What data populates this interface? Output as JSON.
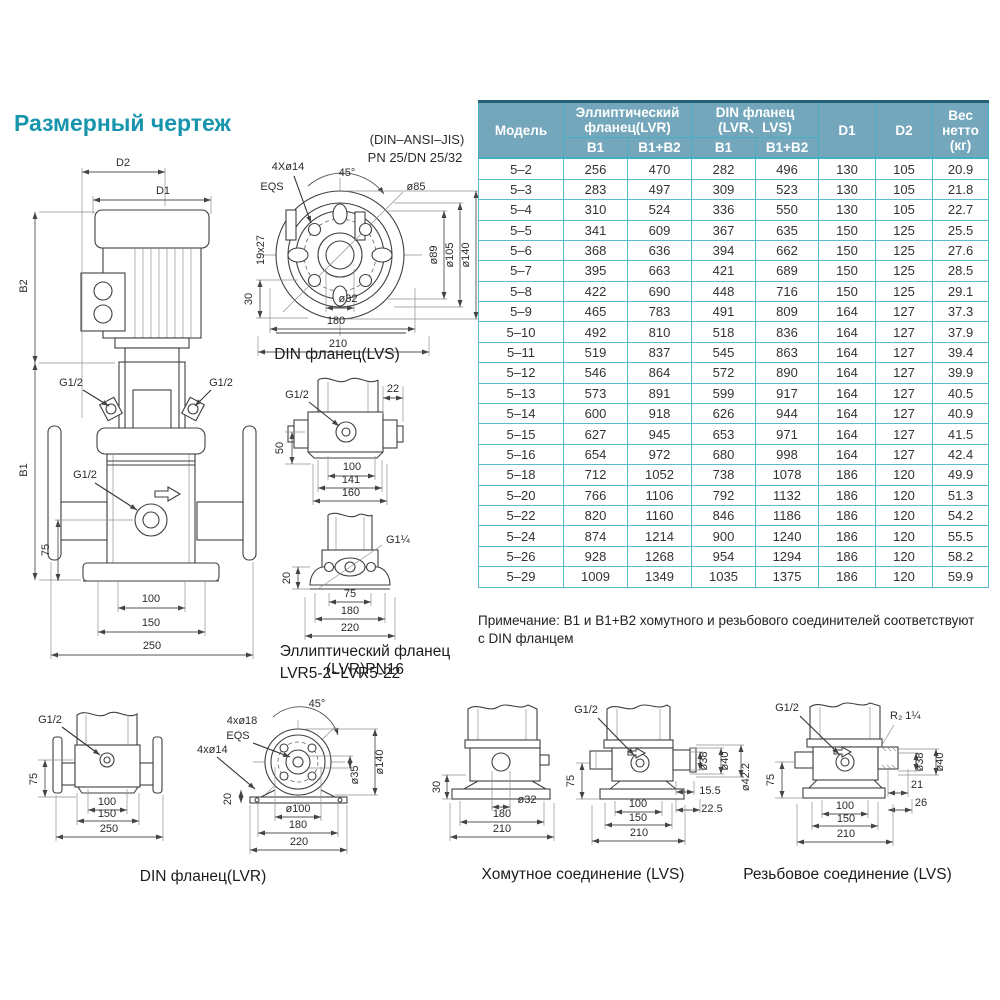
{
  "page": {
    "title": "Размерный чертеж"
  },
  "colors": {
    "accent": "#1795ad",
    "table_header_bg": "#74a7bc",
    "table_grid": "#49b0c2"
  },
  "spec_table": {
    "headers": {
      "model": "Модель",
      "group1": "Эллиптический фланец(LVR)",
      "group2": "DIN фланец (LVR、LVS)",
      "b1a": "B1",
      "b1b2a": "B1+B2",
      "b1b": "B1",
      "b1b2b": "B1+B2",
      "d1": "D1",
      "d2": "D2",
      "weight": "Вес нетто (кг)"
    },
    "rows": [
      [
        "5–2",
        "256",
        "470",
        "282",
        "496",
        "130",
        "105",
        "20.9"
      ],
      [
        "5–3",
        "283",
        "497",
        "309",
        "523",
        "130",
        "105",
        "21.8"
      ],
      [
        "5–4",
        "310",
        "524",
        "336",
        "550",
        "130",
        "105",
        "22.7"
      ],
      [
        "5–5",
        "341",
        "609",
        "367",
        "635",
        "150",
        "125",
        "25.5"
      ],
      [
        "5–6",
        "368",
        "636",
        "394",
        "662",
        "150",
        "125",
        "27.6"
      ],
      [
        "5–7",
        "395",
        "663",
        "421",
        "689",
        "150",
        "125",
        "28.5"
      ],
      [
        "5–8",
        "422",
        "690",
        "448",
        "716",
        "150",
        "125",
        "29.1"
      ],
      [
        "5–9",
        "465",
        "783",
        "491",
        "809",
        "164",
        "127",
        "37.3"
      ],
      [
        "5–10",
        "492",
        "810",
        "518",
        "836",
        "164",
        "127",
        "37.9"
      ],
      [
        "5–11",
        "519",
        "837",
        "545",
        "863",
        "164",
        "127",
        "39.4"
      ],
      [
        "5–12",
        "546",
        "864",
        "572",
        "890",
        "164",
        "127",
        "39.9"
      ],
      [
        "5–13",
        "573",
        "891",
        "599",
        "917",
        "164",
        "127",
        "40.5"
      ],
      [
        "5–14",
        "600",
        "918",
        "626",
        "944",
        "164",
        "127",
        "40.9"
      ],
      [
        "5–15",
        "627",
        "945",
        "653",
        "971",
        "164",
        "127",
        "41.5"
      ],
      [
        "5–16",
        "654",
        "972",
        "680",
        "998",
        "164",
        "127",
        "42.4"
      ],
      [
        "5–18",
        "712",
        "1052",
        "738",
        "1078",
        "186",
        "120",
        "49.9"
      ],
      [
        "5–20",
        "766",
        "1106",
        "792",
        "1132",
        "186",
        "120",
        "51.3"
      ],
      [
        "5–22",
        "820",
        "1160",
        "846",
        "1186",
        "186",
        "120",
        "54.2"
      ],
      [
        "5–24",
        "874",
        "1214",
        "900",
        "1240",
        "186",
        "120",
        "55.5"
      ],
      [
        "5–26",
        "928",
        "1268",
        "954",
        "1294",
        "186",
        "120",
        "58.2"
      ],
      [
        "5–29",
        "1009",
        "1349",
        "1035",
        "1375",
        "186",
        "120",
        "59.9"
      ]
    ],
    "note": "Примечание: B1 и B1+B2 хомутного и резьбового соединителей соответствуют с DIN фланцем"
  },
  "drawings": {
    "main": {
      "d2": "D2",
      "d1": "D1",
      "b2": "B2",
      "b1": "B1",
      "g_left": "G1/2",
      "g_right": "G1/2",
      "g_mid": "G1/2",
      "dim75": "75",
      "dim100": "100",
      "dim150": "150",
      "dim250": "250"
    },
    "din_lvs": {
      "std1": "(DIN–ANSI–JIS)",
      "std2": "PN 25/DN 25/32",
      "holes": "4Xø14",
      "eqs": "EQS",
      "angle": "45°",
      "d85": "ø85",
      "slot": "19x27",
      "dim30": "30",
      "d89": "ø89",
      "d105": "ø105",
      "d140": "ø140",
      "d32": "ø32",
      "dim180": "180",
      "dim210": "210",
      "caption": "DIN фланец(LVS)"
    },
    "lvr_side": {
      "g": "G1/2",
      "dim22": "22",
      "dim50": "50",
      "dim100": "100",
      "dim141": "141",
      "dim160": "160"
    },
    "lvr_bottom": {
      "g": "G1¼",
      "dim20": "20",
      "dim75": "75",
      "dim180": "180",
      "dim220": "220",
      "caption1": "Эллиптический фланец (LVR)PN16",
      "caption2": "LVR5-2~LVR5-22"
    },
    "din_lvr": {
      "g": "G1/2",
      "dim75": "75",
      "dim100": "100",
      "dim150": "150",
      "dim250": "250",
      "caption": "DIN фланец(LVR)"
    },
    "din_lvr_flange": {
      "angle": "45°",
      "holes18": "4xø18",
      "eqs": "EQS",
      "holes14": "4xø14",
      "d140": "ø140",
      "d35": "ø35",
      "dim20": "20",
      "d100": "ø100",
      "dim180": "180",
      "dim220": "220"
    },
    "clamp": {
      "dim30": "30",
      "d32": "ø32",
      "dim180": "180",
      "dim210": "210",
      "g": "G1/2",
      "dim75": "75",
      "d38": "ø38",
      "d40": "ø40",
      "d422": "ø42.2",
      "dim155": "15.5",
      "dim225": "22.5",
      "dim100": "100",
      "dim150": "150",
      "dim210b": "210",
      "caption": "Хомутное соединение (LVS)"
    },
    "threaded": {
      "g": "G1/2",
      "r": "R₂ 1¼",
      "dim75": "75",
      "d38": "ø38",
      "d40": "ø40",
      "dim21": "21",
      "dim26": "26",
      "dim100": "100",
      "dim150": "150",
      "dim210": "210",
      "caption": "Резьбовое соединение (LVS)"
    }
  }
}
